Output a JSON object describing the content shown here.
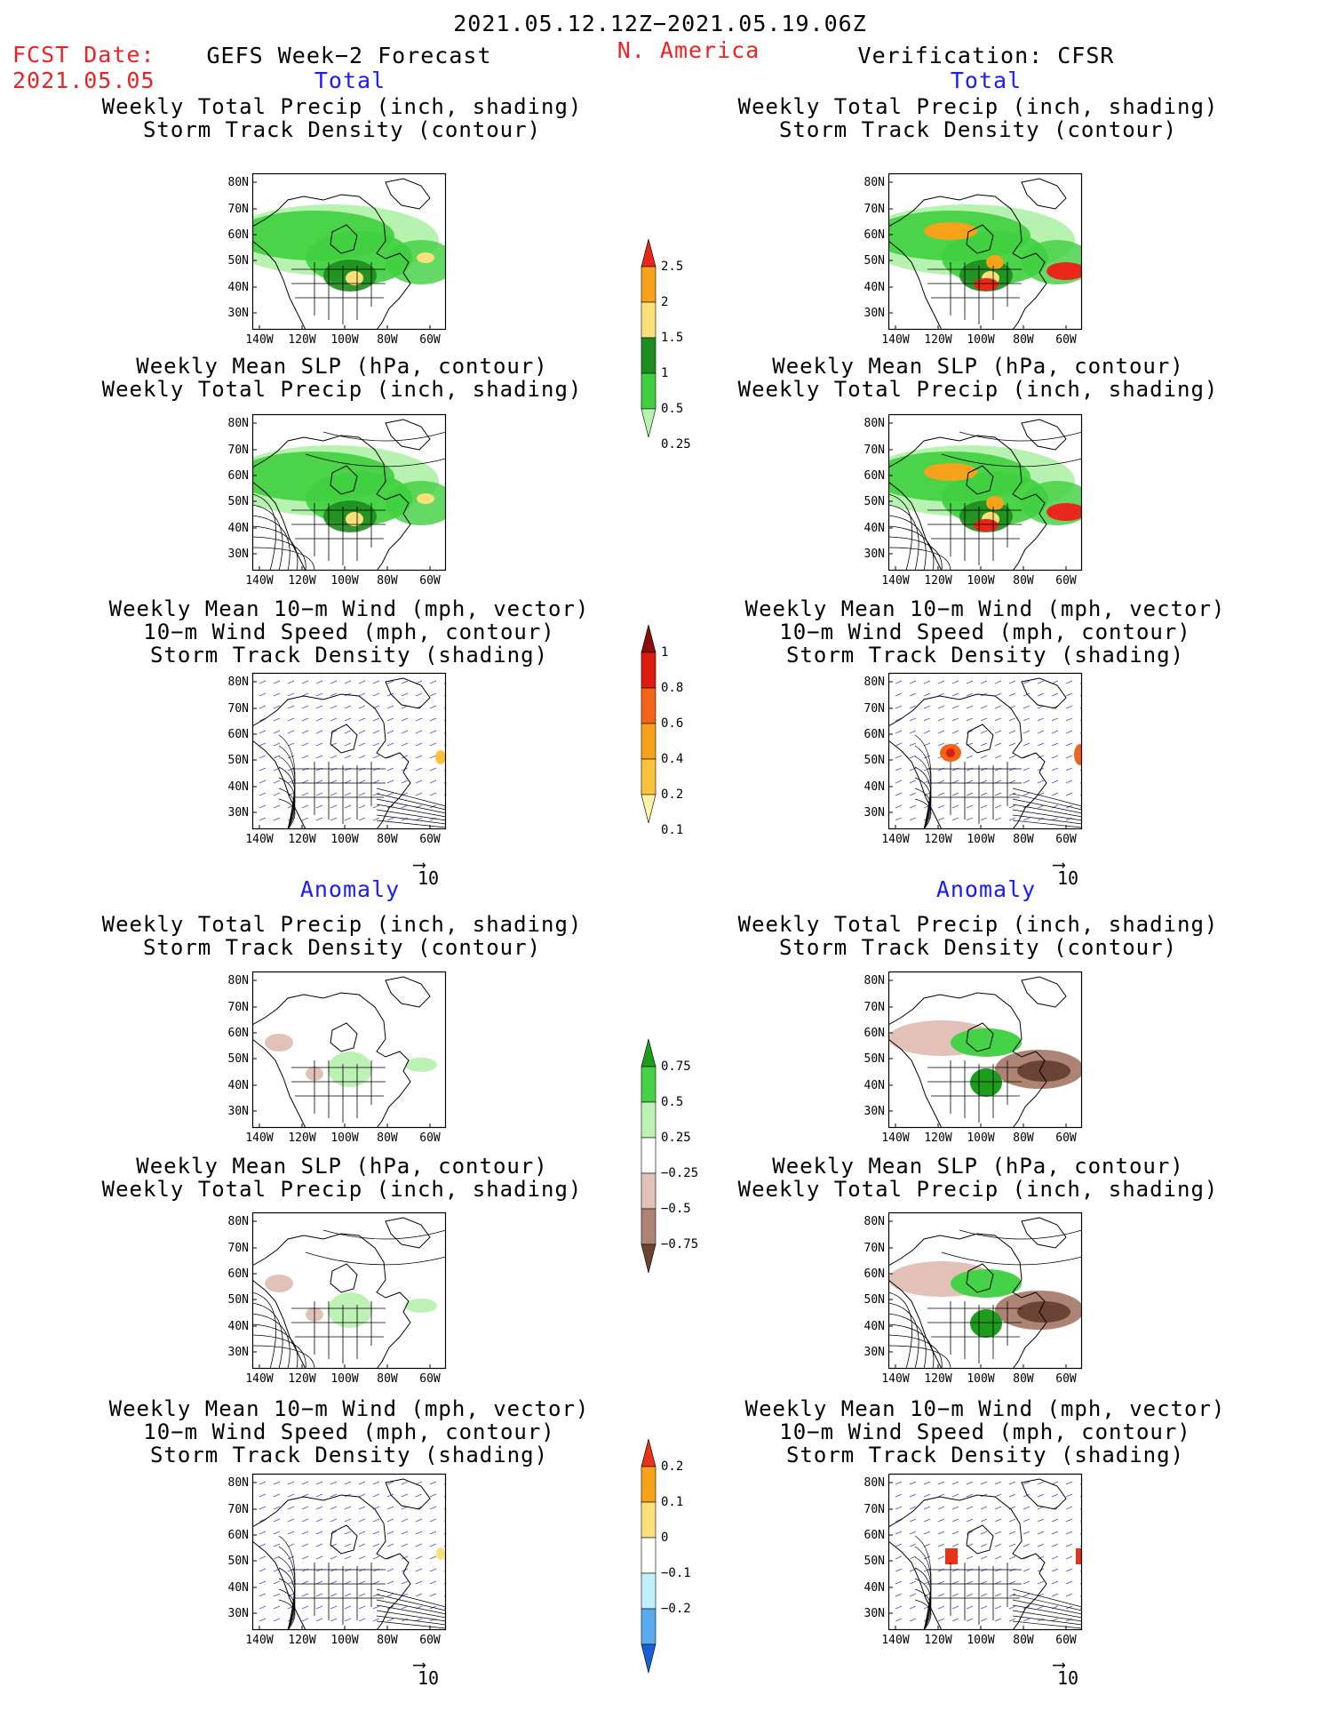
{
  "header": {
    "date_range": "2021.05.12.12Z−2021.05.19.06Z",
    "fcst_label": "FCST Date:",
    "fcst_date": "2021.05.05",
    "left_title": "GEFS Week−2 Forecast",
    "region": "N. America",
    "right_title": "Verification: CFSR"
  },
  "sections": {
    "total": "Total",
    "anomaly": "Anomaly"
  },
  "panel_titles": {
    "precip_track": [
      "Weekly Total Precip (inch, shading)",
      "Storm Track Density (contour)"
    ],
    "slp_precip": [
      "Weekly Mean SLP (hPa, contour)",
      "Weekly Total Precip (inch, shading)"
    ],
    "wind_track": [
      "Weekly Mean 10−m Wind (mph, vector)",
      "10−m Wind Speed (mph, contour)",
      "Storm Track Density (shading)"
    ]
  },
  "axes": {
    "lat_ticks": [
      "80N",
      "70N",
      "60N",
      "50N",
      "40N",
      "30N"
    ],
    "lon_ticks": [
      "140W",
      "120W",
      "100W",
      "80W",
      "60W"
    ]
  },
  "vector_ref": "10",
  "colorbars": {
    "precip_total": {
      "labels": [
        "2.5",
        "2",
        "1.5",
        "1",
        "0.5",
        "0.25"
      ],
      "colors": [
        "#e8261a",
        "#f7a21b",
        "#fbe07c",
        "#1e8c1e",
        "#3fcf3f",
        "#b8f2b0"
      ]
    },
    "track_total": {
      "labels": [
        "1",
        "0.8",
        "0.6",
        "0.4",
        "0.2",
        "0.1"
      ],
      "colors": [
        "#8b0c0c",
        "#dd1c10",
        "#f2641a",
        "#f7a21b",
        "#fbc23c",
        "#fff2a6"
      ]
    },
    "precip_anom": {
      "labels": [
        "0.75",
        "0.5",
        "0.25",
        "−0.25",
        "−0.5",
        "−0.75"
      ],
      "colors": [
        "#1e9c1e",
        "#46d246",
        "#bdf2b5",
        "#ffffff",
        "#e2c2b8",
        "#ad8474",
        "#6b4334"
      ]
    },
    "track_anom": {
      "labels": [
        "0.2",
        "0.1",
        "0",
        "−0.1",
        "−0.2"
      ],
      "colors": [
        "#e8331a",
        "#f7a21b",
        "#fde07c",
        "#ffffff",
        "#bff0fb",
        "#5aaaf0",
        "#1a5fd8"
      ]
    }
  },
  "colors": {
    "title_red": "#ee2222",
    "section_blue": "#1a1aff"
  }
}
